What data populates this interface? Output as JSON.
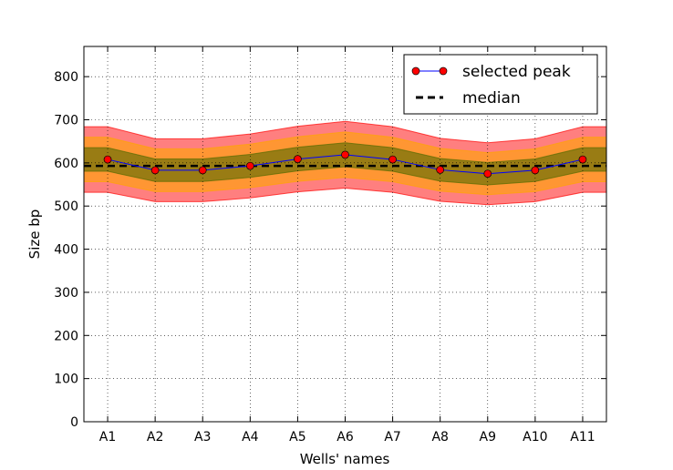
{
  "chart_data": {
    "type": "line",
    "title": "",
    "xlabel": "Wells' names",
    "ylabel": "Size bp",
    "categories": [
      "A1",
      "A2",
      "A3",
      "A4",
      "A5",
      "A6",
      "A7",
      "A8",
      "A9",
      "A10",
      "A11"
    ],
    "ylim": [
      0,
      870
    ],
    "yticks": [
      0,
      100,
      200,
      300,
      400,
      500,
      600,
      700,
      800
    ],
    "grid": true,
    "legend_position": "top-right",
    "series": [
      {
        "name": "selected peak",
        "values": [
          608,
          583,
          583,
          593,
          609,
          619,
          608,
          584,
          575,
          583,
          608
        ],
        "line_color": "#0000ff",
        "marker_color": "#ff0000"
      },
      {
        "name": "median",
        "values": [
          593,
          593,
          593,
          593,
          593,
          593,
          593,
          593,
          593,
          593,
          593
        ],
        "line_color": "#000000",
        "style": "dashed"
      }
    ],
    "bands": [
      {
        "tolerance_pct": 12.5,
        "color": "#ff0000",
        "opacity": 0.5
      },
      {
        "tolerance_pct": 8.5,
        "color": "#ffa500",
        "opacity": 0.6
      },
      {
        "tolerance_pct": 4.5,
        "color": "#556b00",
        "opacity": 0.6
      }
    ]
  }
}
